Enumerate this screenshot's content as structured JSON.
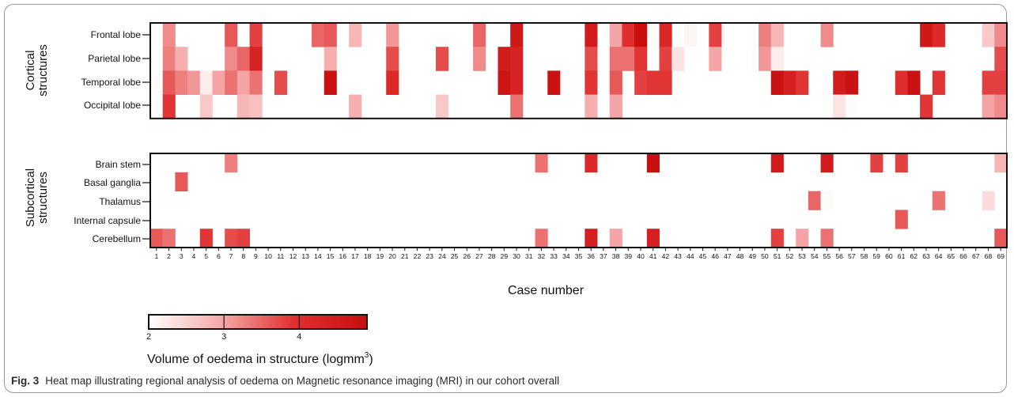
{
  "chart_data": {
    "type": "heatmap",
    "xlabel": "Case number",
    "x": [
      1,
      2,
      3,
      4,
      5,
      6,
      7,
      8,
      9,
      10,
      11,
      12,
      13,
      14,
      15,
      16,
      17,
      18,
      19,
      20,
      21,
      22,
      23,
      24,
      25,
      26,
      27,
      28,
      29,
      30,
      31,
      32,
      33,
      34,
      35,
      36,
      37,
      38,
      39,
      40,
      41,
      42,
      43,
      44,
      45,
      46,
      47,
      48,
      49,
      50,
      51,
      52,
      53,
      54,
      55,
      56,
      57,
      58,
      59,
      60,
      61,
      62,
      63,
      64,
      65,
      66,
      67,
      68,
      69
    ],
    "colorbar": {
      "label": "Volume of oedema in structure (logmm",
      "label_sup": "3",
      "label_end": ")",
      "range": [
        2,
        4.9
      ],
      "ticks": [
        "2",
        "3",
        "4"
      ],
      "colors": [
        "#ffffff",
        "#f5a8a8",
        "#e03030",
        "#c80e0e"
      ]
    },
    "panels": [
      {
        "group": "Cortical structures",
        "group_lines": [
          "Cortical",
          "structures"
        ],
        "rows": [
          {
            "label": "Frontal lobe",
            "values": {
              "2": 3.2,
              "7": 3.6,
              "9": 3.8,
              "14": 3.5,
              "15": 3.6,
              "17": 2.8,
              "20": 3.1,
              "27": 3.5,
              "30": 4.6,
              "36": 4.5,
              "38": 3.0,
              "39": 4.0,
              "40": 4.9,
              "42": 4.2,
              "44": 2.1,
              "46": 3.8,
              "50": 3.3,
              "51": 2.8,
              "55": 3.2,
              "63": 4.6,
              "64": 4.1,
              "68": 2.6,
              "69": 3.2
            }
          },
          {
            "label": "Parietal lobe",
            "values": {
              "2": 3.3,
              "3": 2.9,
              "7": 3.2,
              "8": 3.5,
              "9": 4.3,
              "15": 2.9,
              "20": 3.7,
              "24": 3.7,
              "27": 3.2,
              "29": 4.5,
              "30": 4.3,
              "36": 3.7,
              "38": 3.4,
              "39": 3.4,
              "40": 3.9,
              "42": 3.8,
              "43": 2.3,
              "46": 3.0,
              "50": 3.1,
              "51": 2.2,
              "69": 3.7
            }
          },
          {
            "label": "Temporal lobe",
            "values": {
              "2": 3.6,
              "3": 3.3,
              "4": 3.1,
              "5": 2.2,
              "6": 3.0,
              "7": 3.4,
              "8": 3.0,
              "9": 3.4,
              "11": 3.7,
              "15": 4.8,
              "20": 4.1,
              "29": 4.7,
              "30": 4.3,
              "33": 4.8,
              "36": 3.9,
              "38": 3.6,
              "40": 3.8,
              "41": 3.9,
              "42": 3.9,
              "51": 4.8,
              "52": 4.4,
              "53": 3.9,
              "56": 4.5,
              "57": 4.8,
              "61": 4.0,
              "62": 4.8,
              "64": 3.9,
              "68": 3.8,
              "69": 3.8
            }
          },
          {
            "label": "Occipital lobe",
            "values": {
              "2": 3.9,
              "5": 2.6,
              "8": 2.8,
              "9": 2.7,
              "17": 2.9,
              "24": 2.6,
              "30": 3.4,
              "36": 2.9,
              "38": 3.0,
              "56": 2.3,
              "57": 2.05,
              "63": 3.9,
              "68": 3.0,
              "69": 3.2
            }
          }
        ]
      },
      {
        "group": "Subcortical structures",
        "group_lines": [
          "Subcortical",
          "structures"
        ],
        "rows": [
          {
            "label": "Brain stem",
            "values": {
              "7": 3.3,
              "32": 3.4,
              "36": 4.1,
              "41": 4.9,
              "51": 4.5,
              "55": 4.5,
              "59": 3.8,
              "61": 3.8,
              "69": 2.8
            }
          },
          {
            "label": "Basal ganglia",
            "values": {
              "3": 3.6
            }
          },
          {
            "label": "Thalamus",
            "values": {
              "54": 3.5,
              "55": 2.05,
              "64": 3.4,
              "68": 2.4
            }
          },
          {
            "label": "Internal capsule",
            "values": {
              "61": 3.6
            }
          },
          {
            "label": "Cerebellum",
            "values": {
              "1": 3.6,
              "2": 3.4,
              "5": 3.9,
              "7": 3.7,
              "8": 3.8,
              "32": 3.4,
              "36": 4.4,
              "38": 3.0,
              "41": 4.4,
              "51": 3.8,
              "53": 3.0,
              "55": 3.4,
              "69": 3.6
            }
          }
        ]
      }
    ]
  },
  "caption": {
    "label": "Fig. 3",
    "text": "Heat map illustrating regional analysis of oedema on Magnetic resonance imaging (MRI) in our cohort overall"
  }
}
